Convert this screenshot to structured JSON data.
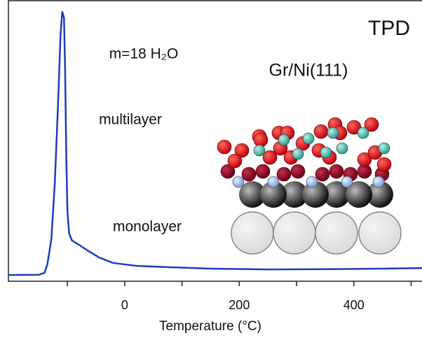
{
  "chart_data": {
    "type": "line",
    "x_label": "Temperature (°C)",
    "annotations": [
      "TPD",
      "m=18 H₂O",
      "Gr/Ni(111)",
      "multilayer",
      "monolayer"
    ],
    "x": [
      -203,
      -150,
      -140,
      -135,
      -128,
      -122,
      -116,
      -112,
      -109,
      -106,
      -104,
      -102,
      -100,
      -97,
      -92,
      -80,
      -65,
      -45,
      -20,
      20,
      80,
      150,
      250,
      350,
      450,
      519
    ],
    "series": [
      {
        "color": "#1c3bbd",
        "values": [
          2.2,
          2.3,
          3,
          6,
          15,
          35,
          65,
          88,
          96,
          94,
          75,
          45,
          25,
          17,
          14.5,
          13,
          11,
          8.5,
          6.5,
          5.5,
          5,
          4.5,
          4.2,
          4.3,
          4.5,
          4.7
        ]
      }
    ],
    "xlim": [
      -203,
      519
    ],
    "xticks": [
      0,
      200,
      400
    ],
    "xminor_ticks": [
      -100,
      100,
      300,
      500
    ],
    "ylim": [
      0,
      100
    ]
  }
}
